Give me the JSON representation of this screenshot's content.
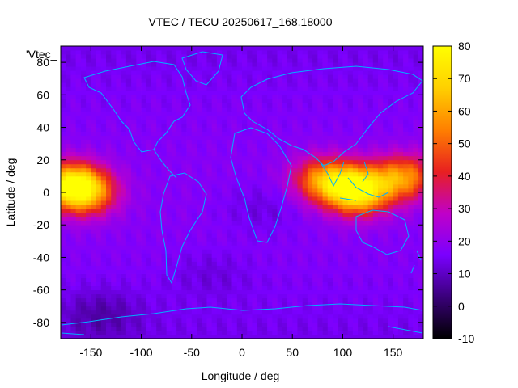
{
  "chart_data": {
    "type": "heatmap",
    "title": "VTEC / TECU 20250617_168.18000",
    "xlabel": "Longitude / deg",
    "ylabel": "Latitude / deg",
    "series_label": "'Vtec_",
    "xlim": [
      -180,
      180
    ],
    "ylim": [
      -90,
      90
    ],
    "x_ticks": [
      -150,
      -100,
      -50,
      0,
      50,
      100,
      150
    ],
    "y_ticks": [
      -80,
      -60,
      -40,
      -20,
      0,
      20,
      40,
      60,
      80
    ],
    "colorbar": {
      "min": -10,
      "max": 80,
      "ticks": [
        -10,
        0,
        10,
        20,
        30,
        40,
        50,
        60,
        70,
        80
      ],
      "palette": [
        "#000000",
        "#3a007a",
        "#7a00ff",
        "#c000c8",
        "#e82020",
        "#ff8000",
        "#ffd000",
        "#ffff00"
      ]
    },
    "background_level": 14,
    "anomalies": [
      {
        "lon": -175,
        "lat": 5,
        "peak": 40
      },
      {
        "lon": -165,
        "lat": 3,
        "peak": 52
      },
      {
        "lon": -148,
        "lat": 0,
        "peak": 38
      },
      {
        "lon": 75,
        "lat": 8,
        "peak": 42
      },
      {
        "lon": 100,
        "lat": 5,
        "peak": 48
      },
      {
        "lon": 118,
        "lat": 0,
        "peak": 58
      },
      {
        "lon": 150,
        "lat": 8,
        "peak": 40
      },
      {
        "lon": 170,
        "lat": 10,
        "peak": 34
      }
    ],
    "lows": [
      {
        "lon": -140,
        "lat": -75,
        "depth": 8
      },
      {
        "lon": 20,
        "lat": -10,
        "depth": 5
      },
      {
        "lon": -30,
        "lat": -50,
        "depth": 4
      }
    ],
    "overlay": "continent outlines",
    "grid": false,
    "legend": "colorbar-right"
  }
}
